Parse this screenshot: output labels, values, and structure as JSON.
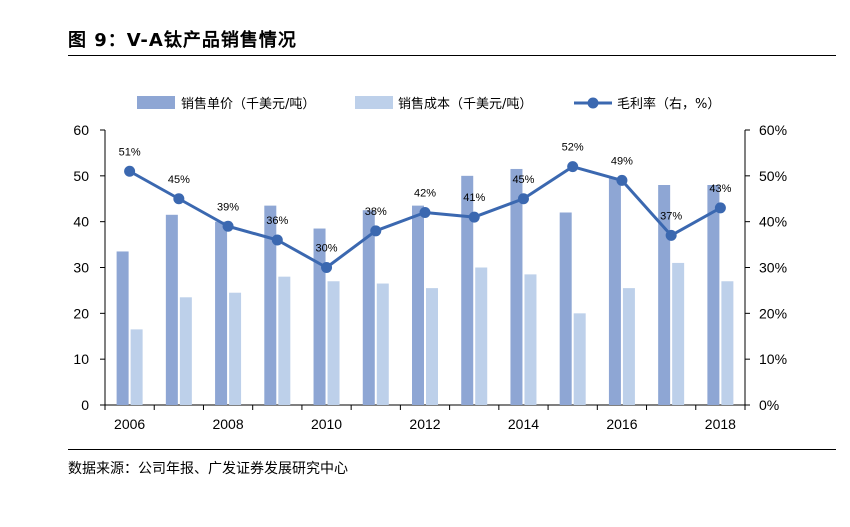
{
  "figure_title": "图 9：V-A钛产品销售情况",
  "source_note": "数据来源：公司年报、广发证券发展研究中心",
  "colors": {
    "price": "#8EA6D4",
    "cost": "#BDD0EA",
    "margin": "#3B68B0"
  },
  "chart_data": {
    "type": "bar",
    "x": [
      2006,
      2007,
      2008,
      2009,
      2010,
      2011,
      2012,
      2013,
      2014,
      2015,
      2016,
      2017,
      2018
    ],
    "x_tick_labels": [
      "2006",
      "2008",
      "2010",
      "2012",
      "2014",
      "2016",
      "2018"
    ],
    "series": [
      {
        "name": "销售单价（千美元/吨）",
        "type": "bar",
        "axis": "left",
        "values": [
          33.5,
          41.5,
          40,
          43.5,
          38.5,
          42.5,
          43.5,
          50,
          51.5,
          42,
          49.5,
          48,
          48
        ]
      },
      {
        "name": "销售成本（千美元/吨）",
        "type": "bar",
        "axis": "left",
        "values": [
          16.5,
          23.5,
          24.5,
          28,
          27,
          26.5,
          25.5,
          30,
          28.5,
          20,
          25.5,
          31,
          27
        ]
      },
      {
        "name": "毛利率（右，%）",
        "type": "line",
        "axis": "right",
        "values": [
          51,
          45,
          39,
          36,
          30,
          38,
          42,
          41,
          45,
          52,
          49,
          37,
          43
        ],
        "labels": [
          "51%",
          "45%",
          "39%",
          "36%",
          "30%",
          "38%",
          "42%",
          "41%",
          "45%",
          "52%",
          "49%",
          "37%",
          "43%"
        ]
      }
    ],
    "y_left": {
      "min": 0,
      "max": 60,
      "ticks": [
        "0",
        "10",
        "20",
        "30",
        "40",
        "50",
        "60"
      ]
    },
    "y_right": {
      "min": 0,
      "max": 60,
      "ticks": [
        "0%",
        "10%",
        "20%",
        "30%",
        "40%",
        "50%",
        "60%"
      ]
    },
    "grid": false,
    "legend_position": "top"
  }
}
